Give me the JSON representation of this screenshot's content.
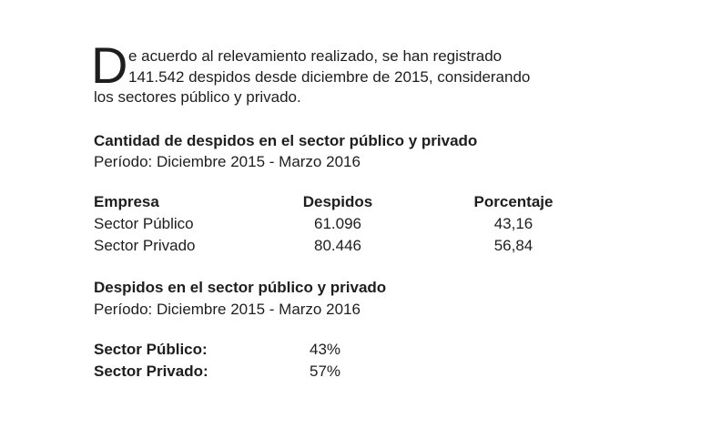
{
  "intro": {
    "drop_cap": "D",
    "lines": [
      "e acuerdo al relevamiento realizado, se han registrado",
      "141.542 despidos desde diciembre de 2015, considerando",
      "los sectores público y privado."
    ]
  },
  "table_section": {
    "title": "Cantidad de despidos en el sector público y privado",
    "period": "Período: Diciembre 2015 - Marzo 2016",
    "table": {
      "headers": [
        "Empresa",
        "Despidos",
        "Porcentaje"
      ],
      "rows": [
        [
          "Sector Público",
          "61.096",
          "43,16"
        ],
        [
          "Sector Privado",
          "80.446",
          "56,84"
        ]
      ]
    }
  },
  "summary_section": {
    "title": "Despidos en el sector público y privado",
    "period": "Período: Diciembre 2015 - Marzo 2016",
    "rows": [
      [
        "Sector Público:",
        "43%"
      ],
      [
        "Sector Privado:",
        "57%"
      ]
    ]
  }
}
